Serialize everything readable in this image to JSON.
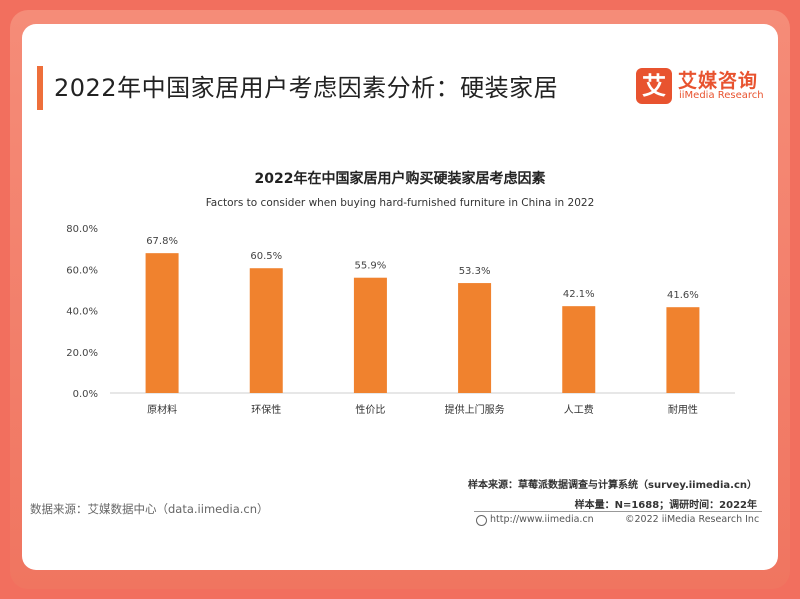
{
  "header": {
    "title": "2022年中国家居用户考虑因素分析：硬装家居",
    "logo_mark": "艾",
    "logo_cn": "艾媒咨询",
    "logo_en": "iiMedia Research"
  },
  "colors": {
    "bar": "#f0822e",
    "accent": "#ee6f3b",
    "frame": "#f26f5e"
  },
  "chart_data": {
    "type": "bar",
    "title": "2022年在中国家居用户购买硬装家居考虑因素",
    "subtitle": "Factors to consider when buying hard-furnished furniture in China in 2022",
    "categories": [
      "原材料",
      "环保性",
      "性价比",
      "提供上门服务",
      "人工费",
      "耐用性"
    ],
    "values": [
      67.8,
      60.5,
      55.9,
      53.3,
      42.1,
      41.6
    ],
    "data_labels": [
      "67.8%",
      "60.5%",
      "55.9%",
      "53.3%",
      "42.1%",
      "41.6%"
    ],
    "ylim": [
      0,
      80
    ],
    "yticks": [
      0,
      20,
      40,
      60,
      80
    ],
    "ytick_labels": [
      "0.0%",
      "20.0%",
      "40.0%",
      "60.0%",
      "80.0%"
    ],
    "grid": false,
    "legend": "none"
  },
  "footer": {
    "data_source": "数据来源：艾媒数据中心（data.iimedia.cn）",
    "sample_source": "样本来源：草莓派数据调查与计算系统（survey.iimedia.cn）",
    "sample_size": "样本量：N=1688；调研时间：2022年",
    "url": "http://www.iimedia.cn",
    "copyright": "©2022  iiMedia Research  Inc"
  }
}
